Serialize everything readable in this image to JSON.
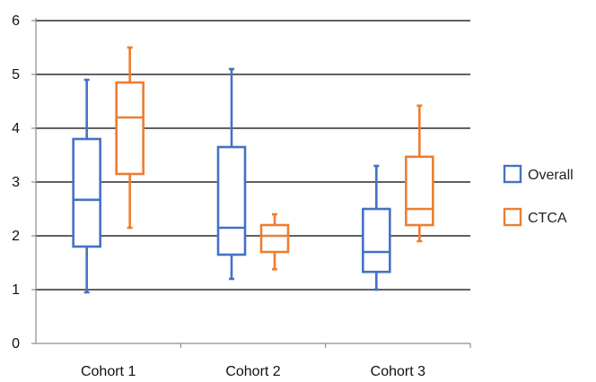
{
  "chart_data": {
    "type": "boxplot",
    "categories": [
      "Cohort 1",
      "Cohort 2",
      "Cohort 3"
    ],
    "ylim": [
      0,
      6
    ],
    "yticks": [
      "0",
      "1",
      "2",
      "3",
      "4",
      "5",
      "6"
    ],
    "grid": true,
    "legend_position": "right",
    "series": [
      {
        "name": "Overall",
        "color": "#4472C4",
        "boxes": [
          {
            "min": 0.95,
            "q1": 1.8,
            "median": 2.67,
            "q3": 3.8,
            "max": 4.9
          },
          {
            "min": 1.2,
            "q1": 1.65,
            "median": 2.15,
            "q3": 3.65,
            "max": 5.1
          },
          {
            "min": 1.0,
            "q1": 1.33,
            "median": 1.7,
            "q3": 2.5,
            "max": 3.3
          }
        ]
      },
      {
        "name": "CTCA",
        "color": "#ED7D31",
        "boxes": [
          {
            "min": 2.15,
            "q1": 3.15,
            "median": 4.2,
            "q3": 4.85,
            "max": 5.5
          },
          {
            "min": 1.38,
            "q1": 1.7,
            "median": 2.0,
            "q3": 2.2,
            "max": 2.4
          },
          {
            "min": 1.9,
            "q1": 2.2,
            "median": 2.5,
            "q3": 3.47,
            "max": 4.42
          }
        ]
      }
    ]
  }
}
